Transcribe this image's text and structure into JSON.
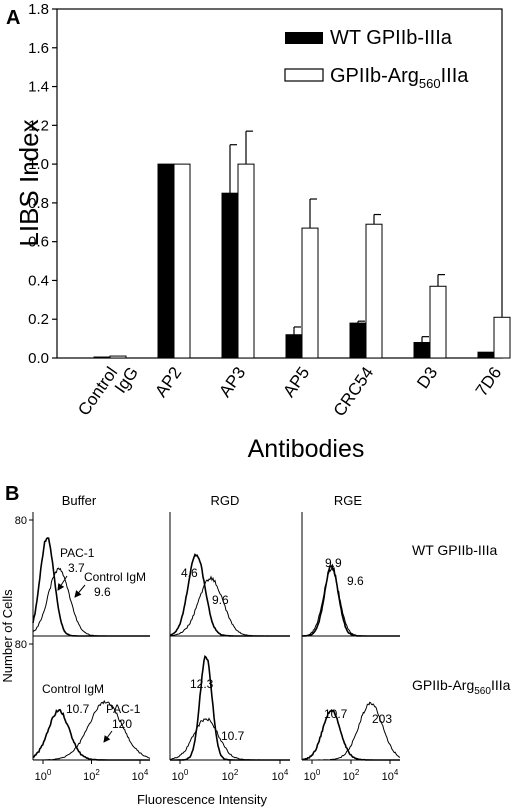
{
  "chart_data": [
    {
      "panel": "A",
      "type": "bar",
      "ylabel": "LIBS Index",
      "xlabel": "Antibodies",
      "ylim": [
        0,
        1.8
      ],
      "yticks": [
        "0.0",
        "0.2",
        "0.4",
        "0.6",
        "0.8",
        "1.0",
        "1.2",
        "1.4",
        "1.6",
        "1.8"
      ],
      "categories": [
        {
          "label": "Control",
          "sub": "IgG"
        },
        {
          "label": "AP2"
        },
        {
          "label": "AP3"
        },
        {
          "label": "AP5"
        },
        {
          "label": "CRC54"
        },
        {
          "label": "D3"
        },
        {
          "label": "7D6"
        }
      ],
      "series": [
        {
          "name": "WT GPIIb-IIIa",
          "fill": "#000000",
          "values": [
            0.005,
            1.0,
            0.85,
            0.12,
            0.18,
            0.08,
            0.03
          ],
          "errors": [
            0,
            0,
            0.25,
            0.04,
            0.01,
            0.03,
            0
          ]
        },
        {
          "name_main": "GPIIb-Arg",
          "name_sub": "560",
          "name_tail": "IIIa",
          "fill": "#ffffff",
          "values": [
            0.01,
            1.0,
            1.0,
            0.67,
            0.69,
            0.37,
            0.21
          ],
          "errors": [
            0,
            0,
            0.17,
            0.15,
            0.05,
            0.06,
            0
          ]
        }
      ],
      "legend": "top-right"
    },
    {
      "panel": "B",
      "type": "histogram",
      "ylabel": "Number of Cells",
      "xlabel": "Fluorescence Intensity",
      "xscale": "log",
      "xticks": [
        {
          "base": "10",
          "exp": "0"
        },
        {
          "base": "10",
          "exp": "2"
        },
        {
          "base": "10",
          "exp": "4"
        }
      ],
      "ytick": "80",
      "columns": [
        "Buffer",
        "RGD",
        "RGE"
      ],
      "row_labels": [
        {
          "main": "WT GPIIb-IIIa",
          "sub": "",
          "tail": ""
        },
        {
          "main": "GPIIb-Arg",
          "sub": "560",
          "tail": "IIIa"
        }
      ],
      "annotations": {
        "pac1": "PAC-1",
        "control_igm": "Control IgM",
        "r0c0": [
          "3.7",
          "9.6"
        ],
        "r0c1": [
          "4.6",
          "9.6"
        ],
        "r0c2": [
          "9.9",
          "9.6"
        ],
        "r1c0": [
          "10.7",
          "120"
        ],
        "r1c1": [
          "12.3",
          "10.7"
        ],
        "r1c2": [
          "10.7",
          "203"
        ]
      }
    }
  ]
}
